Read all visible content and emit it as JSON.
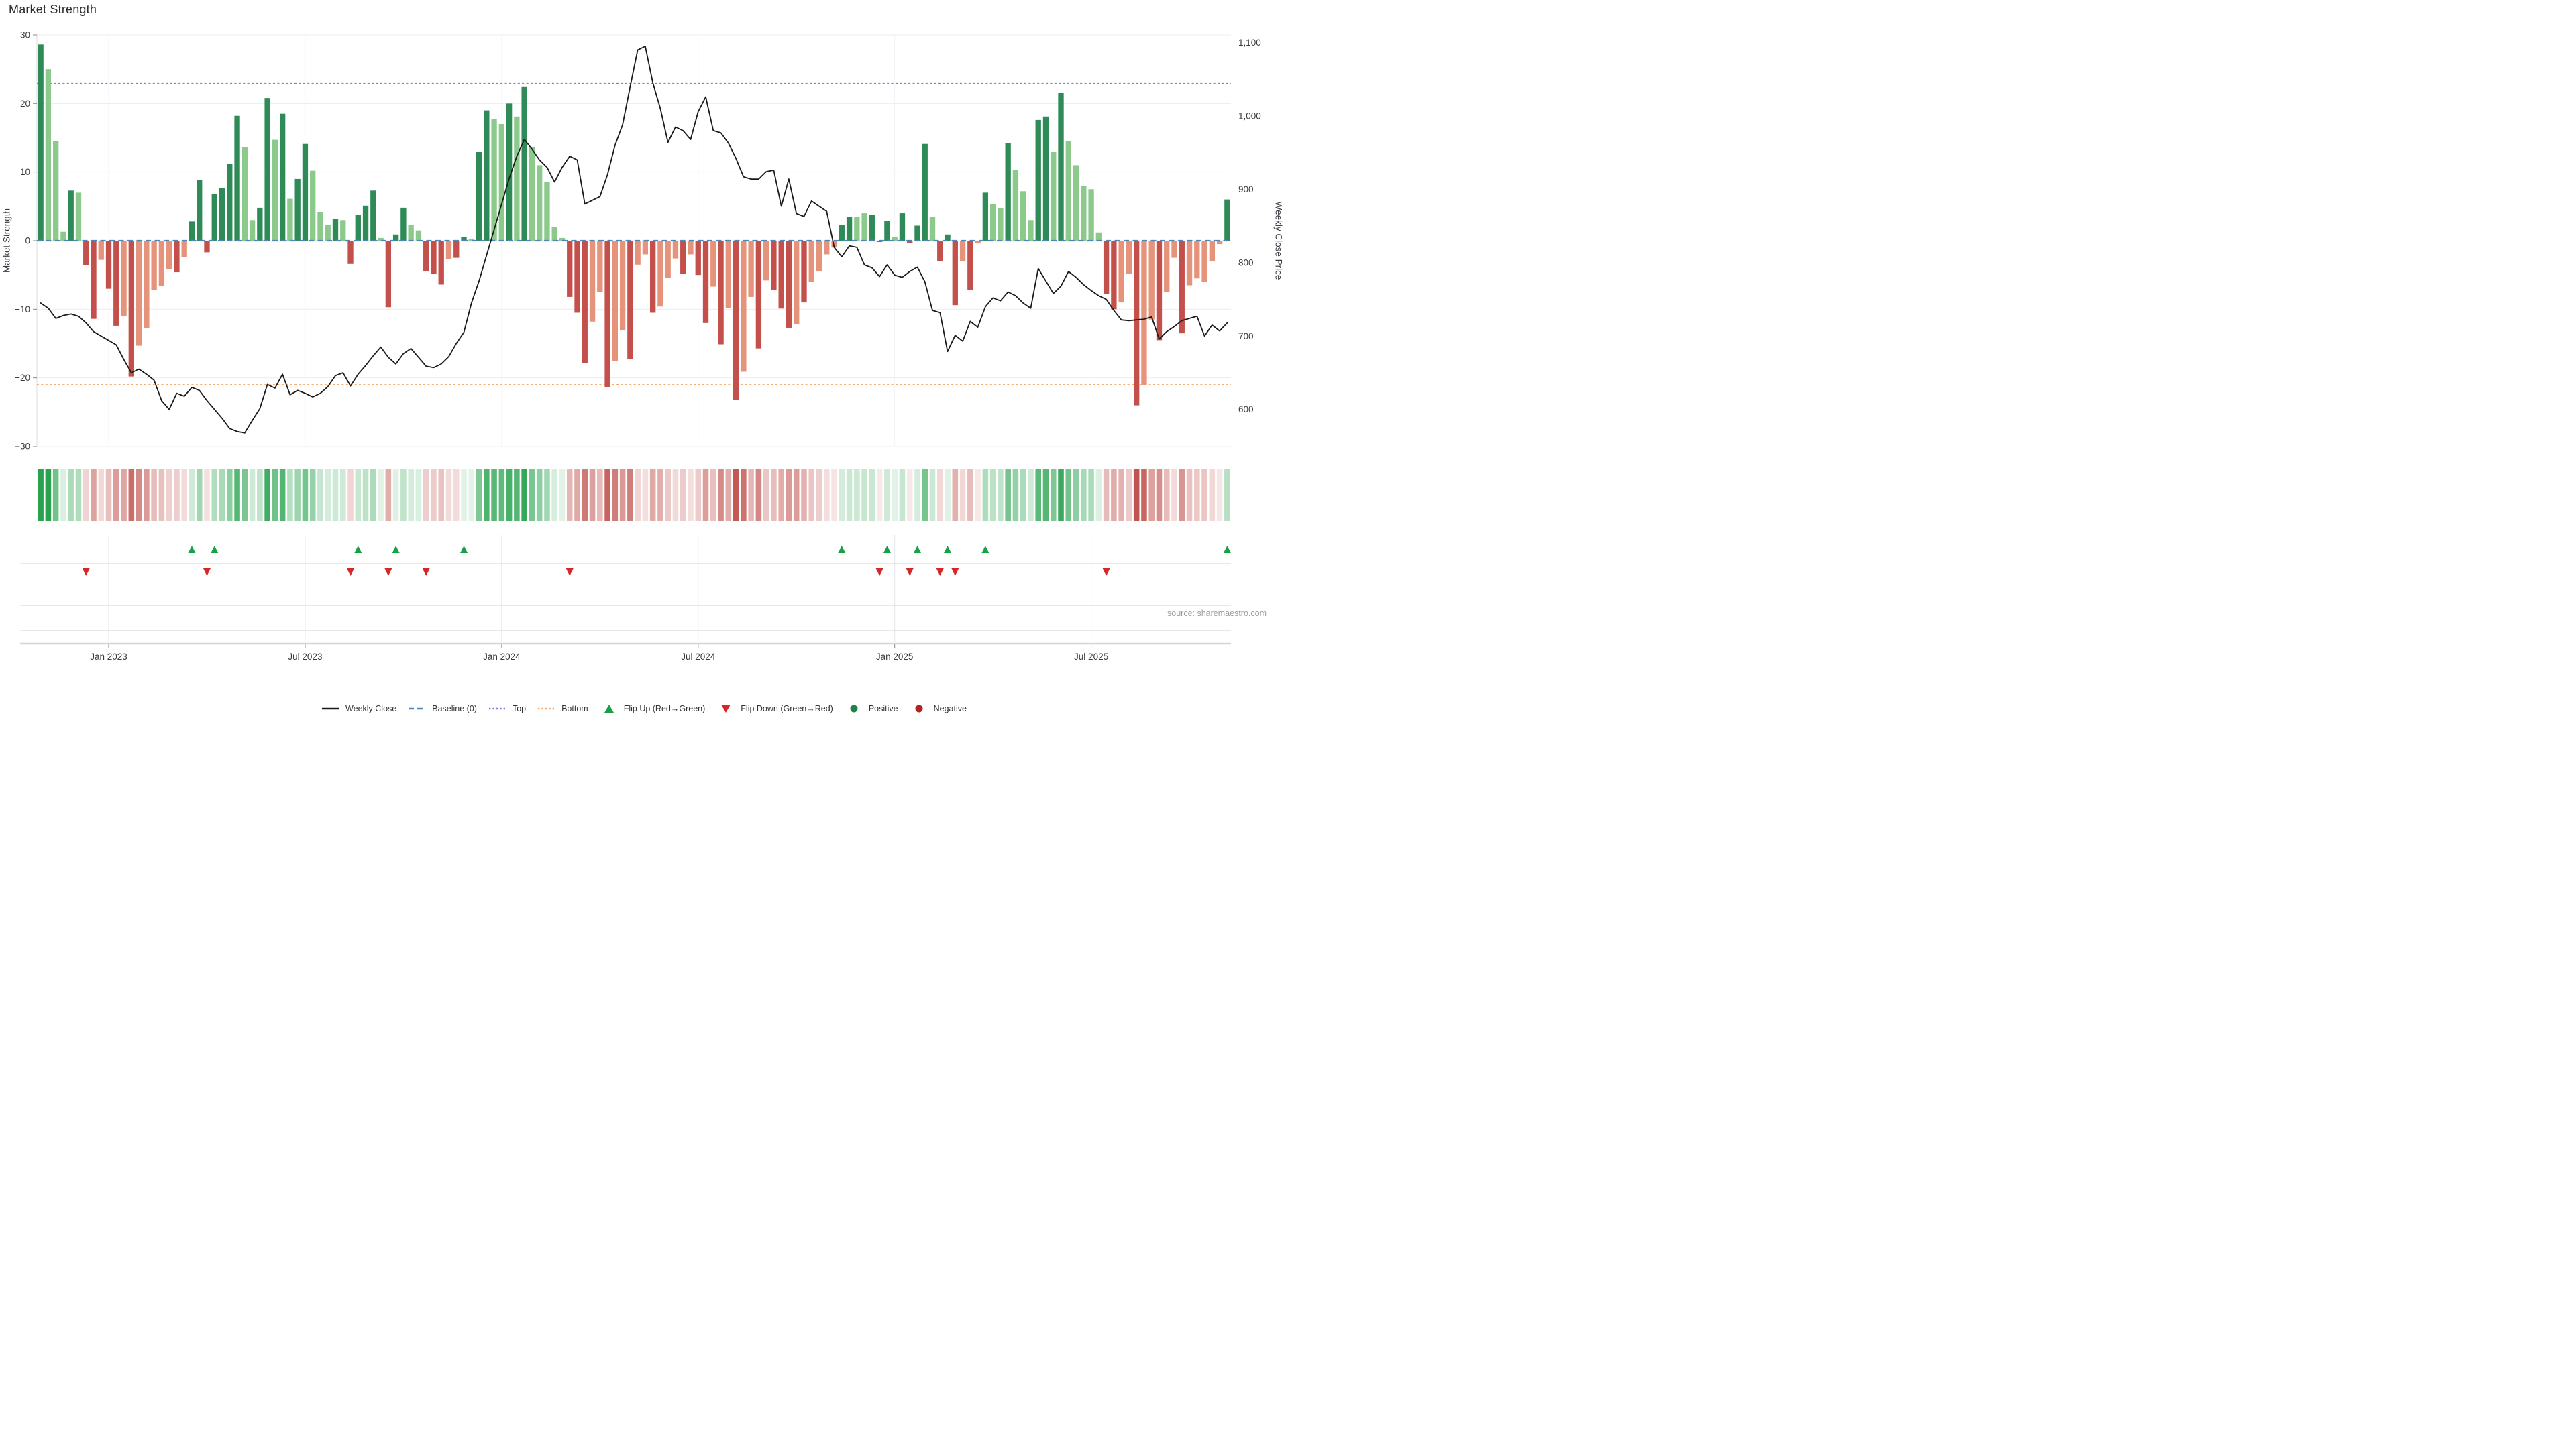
{
  "title": "Market Strength",
  "source": "source: sharemaestro.com",
  "colors": {
    "background": "#ffffff",
    "bar_dark_green": "#2e8b57",
    "bar_light_green": "#8bca8b",
    "bar_dark_red": "#c4504c",
    "bar_salmon": "#e5937a",
    "line": "#1a1a1a",
    "baseline": "#4f86ba",
    "top_line": "#9370DB",
    "bottom_line": "#F4A460",
    "flip_up": "#18a048",
    "flip_down": "#d62728",
    "positive_dot": "#1d8348",
    "negative_dot": "#b22222",
    "grid": "#ececf2",
    "grid_vertical": "#f2f3f7",
    "row_grid_vertical": "#e4e6ea",
    "separator": "#d0d0d0",
    "axis_line": "#d6d6d6",
    "tick_text": "#3a3a42",
    "heat_positive_base": "#28a24e",
    "heat_negative_base": "#c0544f"
  },
  "chart_data": {
    "type": "bar",
    "subtype": "bar-with-line-overlay",
    "title": "Market Strength",
    "n_weeks": 158,
    "x_axis": {
      "tick_labels": [
        "Jan 2023",
        "Jul 2023",
        "Jan 2024",
        "Jul 2024",
        "Jan 2025",
        "Jul 2025"
      ],
      "tick_weeks": [
        9,
        35,
        61,
        87,
        113,
        139
      ]
    },
    "left_axis": {
      "label": "Market Strength",
      "range": [
        -30,
        30
      ],
      "ticks": [
        {
          "v": 30,
          "label": "30"
        },
        {
          "v": 20,
          "label": "20"
        },
        {
          "v": 10,
          "label": "10"
        },
        {
          "v": 0,
          "label": "0"
        },
        {
          "v": -10,
          "label": "−10"
        },
        {
          "v": -20,
          "label": "−20"
        },
        {
          "v": -30,
          "label": "−30"
        }
      ]
    },
    "right_axis": {
      "label": "Weekly Close Price",
      "ticks": [
        {
          "v": 1100,
          "label": "1,100"
        },
        {
          "v": 1000,
          "label": "1,000"
        },
        {
          "v": 900,
          "label": "900"
        },
        {
          "v": 800,
          "label": "800"
        },
        {
          "v": 700,
          "label": "700"
        },
        {
          "v": 600,
          "label": "600"
        }
      ],
      "price_at_zero_strength": 830,
      "price_per_strength_unit": 9.35
    },
    "reference_lines": {
      "baseline": {
        "name": "Baseline (0)",
        "value": 0,
        "style": "dashed"
      },
      "top": {
        "name": "Top",
        "value": 22.9,
        "style": "dotted"
      },
      "bottom": {
        "name": "Bottom",
        "value": -21,
        "style": "dotted"
      }
    },
    "series": [
      {
        "name": "Market Strength",
        "type": "bar",
        "values": [
          28.6,
          25,
          14.5,
          1.3,
          7.3,
          7,
          -3.6,
          -11.4,
          -2.8,
          -7,
          -12.4,
          -11,
          -19.8,
          -15.3,
          -12.7,
          -7.2,
          -6.6,
          -4.2,
          -4.6,
          -2.4,
          2.8,
          8.8,
          -1.7,
          6.8,
          7.7,
          11.2,
          18.2,
          13.6,
          3,
          4.8,
          20.8,
          14.7,
          18.5,
          6.1,
          9,
          14.1,
          10.2,
          4.2,
          2.3,
          3.2,
          3,
          -3.4,
          3.8,
          5.1,
          7.3,
          0.4,
          -9.7,
          0.9,
          4.8,
          2.3,
          1.5,
          -4.5,
          -4.8,
          -6.4,
          -2.7,
          -2.5,
          0.5,
          0.3,
          13,
          19,
          17.7,
          17,
          20,
          18.1,
          22.4,
          13.7,
          11,
          8.6,
          2,
          0.4,
          -8.2,
          -10.5,
          -17.8,
          -11.8,
          -7.5,
          -21.3,
          -17.5,
          -13,
          -17.3,
          -3.5,
          -2,
          -10.5,
          -9.6,
          -5.4,
          -2.6,
          -4.8,
          -2,
          -5,
          -12,
          -6.7,
          -15.1,
          -9.8,
          -23.2,
          -19.1,
          -8.2,
          -15.7,
          -5.8,
          -7.2,
          -9.9,
          -12.7,
          -12.2,
          -9,
          -6,
          -4.5,
          -2,
          -1,
          2.3,
          3.5,
          3.5,
          4,
          3.8,
          -0.2,
          2.9,
          0.5,
          4,
          -0.3,
          2.2,
          14.1,
          3.5,
          -3,
          0.9,
          -9.4,
          -3,
          -7.2,
          -0.4,
          7,
          5.3,
          4.7,
          14.2,
          10.3,
          7.2,
          3,
          17.6,
          18.1,
          13,
          21.6,
          14.5,
          11,
          8,
          7.5,
          1.2,
          -7.8,
          -10,
          -9,
          -4.8,
          -24,
          -21,
          -11.5,
          -14.5,
          -7.5,
          -2.5,
          -13.5,
          -6.5,
          -5.5,
          -6,
          -3,
          -0.5,
          6
        ],
        "shades": [
          "dg",
          "lg",
          "lg",
          "lg",
          "dg",
          "lg",
          "dr",
          "dr",
          "sa",
          "dr",
          "dr",
          "sa",
          "dr",
          "sa",
          "sa",
          "sa",
          "sa",
          "sa",
          "dr",
          "sa",
          "dg",
          "dg",
          "dr",
          "dg",
          "dg",
          "dg",
          "dg",
          "lg",
          "lg",
          "dg",
          "dg",
          "lg",
          "dg",
          "lg",
          "dg",
          "dg",
          "lg",
          "lg",
          "lg",
          "dg",
          "lg",
          "dr",
          "dg",
          "dg",
          "dg",
          "lg",
          "dr",
          "dg",
          "dg",
          "lg",
          "lg",
          "dr",
          "dr",
          "dr",
          "sa",
          "dr",
          "dg",
          "lg",
          "dg",
          "dg",
          "lg",
          "lg",
          "dg",
          "lg",
          "dg",
          "lg",
          "lg",
          "lg",
          "lg",
          "lg",
          "dr",
          "dr",
          "dr",
          "sa",
          "sa",
          "dr",
          "sa",
          "sa",
          "dr",
          "sa",
          "sa",
          "dr",
          "sa",
          "sa",
          "sa",
          "dr",
          "sa",
          "dr",
          "dr",
          "sa",
          "dr",
          "sa",
          "dr",
          "sa",
          "sa",
          "dr",
          "sa",
          "dr",
          "dr",
          "dr",
          "sa",
          "dr",
          "sa",
          "sa",
          "sa",
          "sa",
          "dg",
          "dg",
          "lg",
          "lg",
          "dg",
          "dr",
          "dg",
          "lg",
          "dg",
          "dr",
          "dg",
          "dg",
          "lg",
          "dr",
          "dg",
          "dr",
          "sa",
          "dr",
          "sa",
          "dg",
          "lg",
          "lg",
          "dg",
          "lg",
          "lg",
          "lg",
          "dg",
          "dg",
          "lg",
          "dg",
          "lg",
          "lg",
          "lg",
          "lg",
          "lg",
          "dr",
          "dr",
          "sa",
          "sa",
          "dr",
          "sa",
          "sa",
          "dr",
          "sa",
          "sa",
          "dr",
          "sa",
          "sa",
          "sa",
          "sa",
          "sa",
          "dg"
        ]
      },
      {
        "name": "Weekly Close",
        "type": "line",
        "axis": "price",
        "values": [
          745,
          738,
          724,
          728,
          730,
          727,
          718,
          706,
          700,
          694,
          688,
          668,
          650,
          655,
          648,
          640,
          612,
          600,
          622,
          618,
          630,
          626,
          612,
          600,
          588,
          574,
          570,
          568,
          585,
          601,
          634,
          629,
          648,
          620,
          626,
          622,
          617,
          622,
          631,
          646,
          650,
          632,
          648,
          660,
          673,
          685,
          671,
          662,
          676,
          683,
          671,
          659,
          657,
          662,
          672,
          690,
          705,
          745,
          775,
          810,
          845,
          880,
          915,
          945,
          968,
          955,
          940,
          930,
          910,
          930,
          945,
          940,
          880,
          885,
          890,
          920,
          960,
          988,
          1040,
          1090,
          1095,
          1045,
          1010,
          964,
          985,
          980,
          968,
          1006,
          1026,
          980,
          977,
          963,
          942,
          917,
          914,
          914,
          924,
          926,
          877,
          914,
          867,
          863,
          884,
          877,
          870,
          821,
          808,
          823,
          821,
          797,
          793,
          781,
          797,
          783,
          780,
          788,
          794,
          774,
          735,
          732,
          679,
          701,
          693,
          720,
          712,
          740,
          752,
          748,
          760,
          755,
          745,
          738,
          792,
          775,
          758,
          768,
          788,
          780,
          770,
          762,
          755,
          750,
          735,
          722,
          721,
          722,
          723,
          726,
          696,
          706,
          713,
          721,
          724,
          727,
          700,
          715,
          707,
          718
        ]
      }
    ],
    "heatmap": {
      "description": "strip of weekly cells; color sign and intensity derived from bar values",
      "derived_from": "Market Strength bar values"
    },
    "flips": {
      "up_weeks": [
        20,
        23,
        42,
        47,
        56,
        106,
        112,
        116,
        120,
        125,
        157
      ],
      "down_weeks": [
        6,
        22,
        41,
        46,
        51,
        70,
        111,
        115,
        119,
        121,
        141
      ]
    },
    "grid": "on",
    "legend_position": "bottom-center"
  },
  "legend": {
    "items": [
      {
        "label": "Weekly Close",
        "marker": "line",
        "color": "#1a1a1a"
      },
      {
        "label": "Baseline (0)",
        "marker": "dashed",
        "color": "#4f86ba"
      },
      {
        "label": "Top",
        "marker": "dotted",
        "color": "#9370DB"
      },
      {
        "label": "Bottom",
        "marker": "dotted",
        "color": "#F4A460"
      },
      {
        "label": "Flip Up (Red→Green)",
        "marker": "triangle-up",
        "color": "#18a048"
      },
      {
        "label": "Flip Down (Green→Red)",
        "marker": "triangle-down",
        "color": "#d62728"
      },
      {
        "label": "Positive",
        "marker": "circle",
        "color": "#1d8348"
      },
      {
        "label": "Negative",
        "marker": "circle",
        "color": "#b22222"
      }
    ]
  }
}
